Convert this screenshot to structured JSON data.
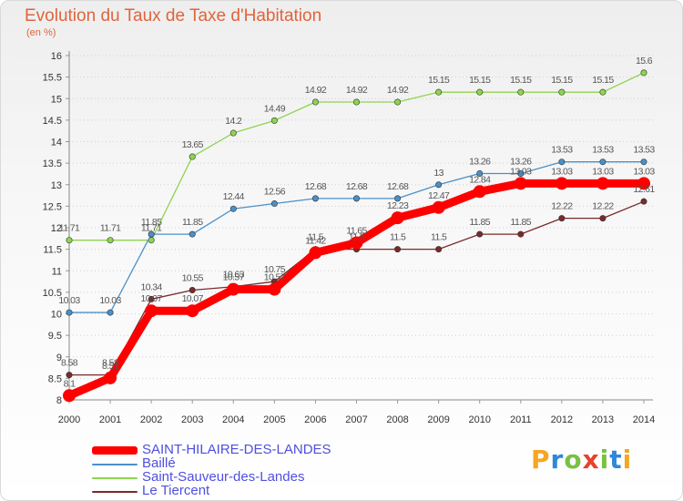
{
  "title": "Evolution du Taux de Taxe d'Habitation",
  "unit_label": "(en %)",
  "brand": {
    "text": "Proxiti",
    "letter_colors": [
      "#f5a623",
      "#2f88d8",
      "#79c142",
      "#e8422b",
      "#79c142",
      "#2f88d8",
      "#f5a623"
    ]
  },
  "chart_data": {
    "type": "line",
    "title": "Evolution du Taux de Taxe d'Habitation",
    "ylabel": "(en %)",
    "xlabel": "",
    "x": [
      "2000",
      "2001",
      "2002",
      "2003",
      "2004",
      "2005",
      "2006",
      "2007",
      "2008",
      "2009",
      "2010",
      "2011",
      "2012",
      "2013",
      "2014"
    ],
    "ylim": [
      8,
      16
    ],
    "yticks": [
      "8",
      "8.5",
      "9",
      "9.5",
      "10",
      "10.5",
      "11",
      "11.5",
      "12",
      "12.5",
      "13",
      "13.5",
      "14",
      "14.5",
      "15",
      "15.5",
      "16"
    ],
    "grid": "horizontal-dashed",
    "legend_position": "bottom-left",
    "series": [
      {
        "name": "SAINT-HILAIRE-DES-LANDES",
        "color": "#ff0000",
        "values": [
          8.1,
          8.51,
          10.07,
          10.07,
          10.57,
          10.57,
          11.42,
          11.65,
          12.23,
          12.47,
          12.84,
          13.03,
          13.03,
          13.03,
          13.03
        ],
        "labels": [
          "8.1",
          "8.51",
          "10.07",
          "10.07",
          "10.57",
          "10.57",
          "11.42",
          "11.65",
          "12.23",
          "12.47",
          "12.84",
          "13.03",
          "13.03",
          "13.03",
          "13.03"
        ]
      },
      {
        "name": "Baillé",
        "color": "#4a90c8",
        "values": [
          10.03,
          10.03,
          11.85,
          11.85,
          12.44,
          12.56,
          12.68,
          12.68,
          12.68,
          13,
          13.26,
          13.26,
          13.53,
          13.53,
          13.53
        ],
        "labels": [
          "10.03",
          "10.03",
          "11.85",
          "11.85",
          "12.44",
          "12.56",
          "12.68",
          "12.68",
          "12.68",
          "13",
          "13.26",
          "13.26",
          "13.53",
          "13.53",
          "13.53"
        ]
      },
      {
        "name": "Saint-Sauveur-des-Landes",
        "color": "#8fd44f",
        "values": [
          11.71,
          11.71,
          11.71,
          13.65,
          14.2,
          14.49,
          14.92,
          14.92,
          14.92,
          15.15,
          15.15,
          15.15,
          15.15,
          15.15,
          15.6
        ],
        "labels": [
          "11.71",
          "11.71",
          "11.71",
          "13.65",
          "14.2",
          "14.49",
          "14.92",
          "14.92",
          "14.92",
          "15.15",
          "15.15",
          "15.15",
          "15.15",
          "15.15",
          "15.6"
        ]
      },
      {
        "name": "Le Tiercent",
        "color": "#7a2a2a",
        "values": [
          8.58,
          8.58,
          10.34,
          10.55,
          10.63,
          10.75,
          11.5,
          11.5,
          11.5,
          11.5,
          11.85,
          11.85,
          12.22,
          12.22,
          12.61
        ],
        "labels": [
          "8.58",
          "8.58",
          "10.34",
          "10.55",
          "10.63",
          "10.75",
          "11.5",
          "11.5",
          "11.5",
          "11.5",
          "11.85",
          "11.85",
          "12.22",
          "12.22",
          "12.61"
        ]
      }
    ]
  }
}
